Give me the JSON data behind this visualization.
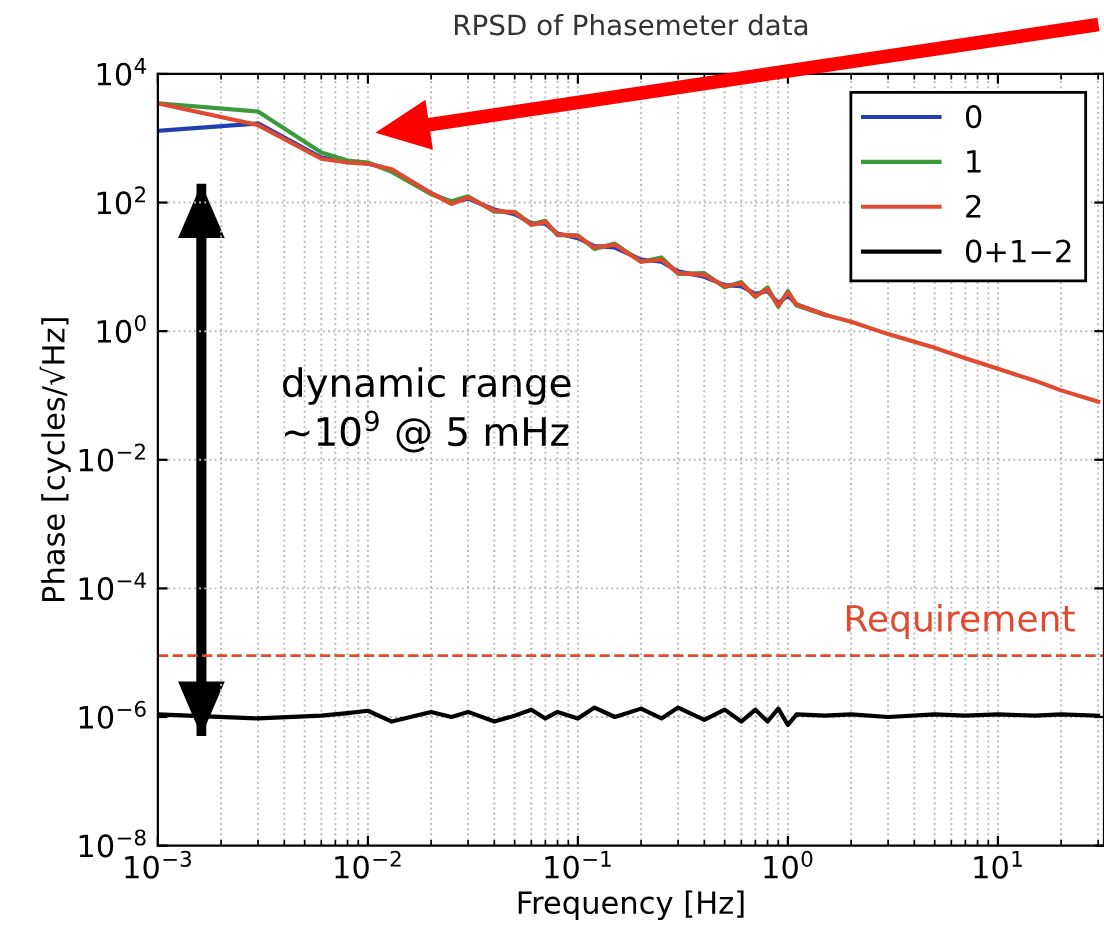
{
  "chart_data": {
    "type": "line",
    "title": "RPSD of Phasemeter data",
    "xlabel": "Frequency [Hz]",
    "ylabel": "Phase [cycles/√Hz]",
    "log": "xy",
    "grid": true,
    "legend": "top right",
    "line_style": "solid",
    "marker": "none",
    "xlim": [
      0.001,
      32
    ],
    "ylim": [
      1e-08,
      10000
    ],
    "xticks": [
      {
        "value": 0.001,
        "label": "10$^{−3}$"
      },
      {
        "value": 0.01,
        "label": "10$^{−2}$"
      },
      {
        "value": 0.1,
        "label": "10$^{−1}$"
      },
      {
        "value": 1,
        "label": "10$^{0}$"
      },
      {
        "value": 10,
        "label": "10$^{1}$"
      }
    ],
    "yticks": [
      {
        "value": 1e-08,
        "label": "10$^{−8}$"
      },
      {
        "value": 1e-06,
        "label": "10$^{−6}$"
      },
      {
        "value": 0.0001,
        "label": "10$^{−4}$"
      },
      {
        "value": 0.01,
        "label": "10$^{−2}$"
      },
      {
        "value": 1,
        "label": "10$^{0}$"
      },
      {
        "value": 100,
        "label": "10$^{2}$"
      },
      {
        "value": 10000,
        "label": "10$^{4}$"
      }
    ],
    "x": [
      0.001,
      0.003,
      0.006,
      0.008,
      0.01,
      0.013,
      0.02,
      0.025,
      0.03,
      0.04,
      0.05,
      0.06,
      0.07,
      0.08,
      0.1,
      0.12,
      0.15,
      0.2,
      0.25,
      0.3,
      0.4,
      0.5,
      0.6,
      0.7,
      0.8,
      0.9,
      1.0,
      1.1,
      1.5,
      2,
      3,
      5,
      7,
      10,
      15,
      20,
      30
    ],
    "series": [
      {
        "name": "0",
        "color": "#2040b0",
        "values": [
          1300,
          1700,
          500,
          430,
          410,
          320,
          140,
          100,
          115,
          78,
          66,
          48,
          47,
          33,
          28,
          21,
          20,
          13,
          12,
          8.5,
          7,
          5.2,
          5,
          3.8,
          4.2,
          2.7,
          3.6,
          2.6,
          1.8,
          null,
          null,
          null,
          null,
          null,
          null,
          null,
          null
        ]
      },
      {
        "name": "1",
        "color": "#3a9a3a",
        "values": [
          3500,
          2600,
          600,
          450,
          420,
          300,
          135,
          105,
          125,
          72,
          72,
          46,
          52,
          31,
          31,
          19,
          23,
          12,
          14,
          7.8,
          8,
          4.8,
          5.8,
          3.4,
          4.8,
          2.4,
          4.2,
          2.5,
          1.8,
          null,
          null,
          null,
          null,
          null,
          null,
          null,
          null
        ]
      },
      {
        "name": "2",
        "color": "#e04a30",
        "values": [
          3500,
          1600,
          480,
          420,
          400,
          330,
          140,
          95,
          120,
          75,
          70,
          45,
          50,
          32,
          30,
          20,
          22,
          12,
          13,
          8,
          7.5,
          5,
          5.5,
          3.5,
          4.5,
          2.5,
          4,
          2.6,
          1.8,
          1.4,
          0.9,
          0.55,
          0.38,
          0.26,
          0.17,
          0.12,
          0.08
        ]
      },
      {
        "name": "0+1−2",
        "color": "#000000",
        "values": [
          1.1e-06,
          9.5e-07,
          1.05e-06,
          1.15e-06,
          1.25e-06,
          8.5e-07,
          1.2e-06,
          1e-06,
          1.2e-06,
          8.5e-07,
          1.05e-06,
          1.3e-06,
          9.5e-07,
          1.2e-06,
          9.5e-07,
          1.4e-06,
          1e-06,
          1.35e-06,
          9.5e-07,
          1.4e-06,
          9e-07,
          1.3e-06,
          8.5e-07,
          1.3e-06,
          8.5e-07,
          1.35e-06,
          7.5e-07,
          1.1e-06,
          1.05e-06,
          1.1e-06,
          1e-06,
          1.1e-06,
          1.05e-06,
          1.1e-06,
          1.05e-06,
          1.1e-06,
          1.05e-06
        ]
      }
    ],
    "ref_lines": [
      {
        "axis": "y",
        "value": 9e-06,
        "label": "Requirement",
        "color": "#e04a30",
        "line_style": "dashed"
      }
    ],
    "annotations": [
      "dynamic range\n~10$^{9}$ @ 5 mHz"
    ]
  }
}
